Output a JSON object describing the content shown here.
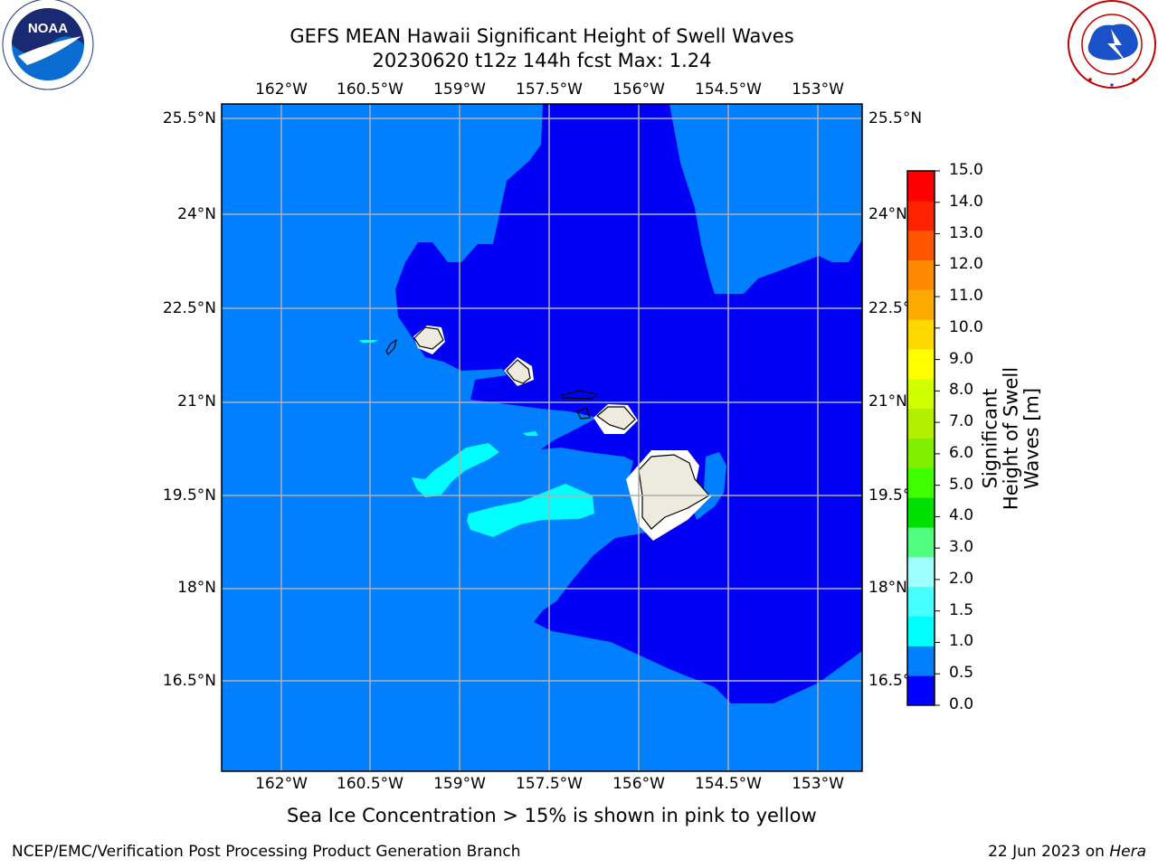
{
  "title": {
    "line1": "GEFS MEAN Hawaii Significant Height of Swell Waves",
    "line2": "20230620 t12z 144h fcst   Max: 1.24"
  },
  "logos": {
    "left": "NOAA",
    "left_ring_text": "NATIONAL OCEANIC AND ATMOSPHERIC ADMINISTRATION · U.S. DEPARTMENT OF COMMERCE",
    "right_ring_text": "NATIONAL WEATHER SERVICE"
  },
  "map": {
    "longitude_labels": [
      "162°W",
      "160.5°W",
      "159°W",
      "157.5°W",
      "156°W",
      "154.5°W",
      "153°W"
    ],
    "latitude_labels": [
      "25.5°N",
      "24°N",
      "22.5°N",
      "21°N",
      "19.5°N",
      "18°N",
      "16.5°N"
    ],
    "colors": {
      "ocean_low": "#0000f5",
      "ocean_mid": "#0080ff",
      "ocean_high": "#00ffff",
      "land": "#ecebdd",
      "grid": "#b0b0b0"
    }
  },
  "colorbar": {
    "title_line1": "Significant Height of Swell",
    "title_line2": "Waves [m]",
    "ticks": [
      "0.0",
      "0.5",
      "1.0",
      "1.5",
      "2.0",
      "3.0",
      "4.0",
      "5.0",
      "6.0",
      "7.0",
      "8.0",
      "9.0",
      "10.0",
      "11.0",
      "12.0",
      "13.0",
      "14.0",
      "15.0"
    ],
    "colors": [
      "#0000ff",
      "#0080ff",
      "#00ffff",
      "#48ffff",
      "#a0ffff",
      "#50ff80",
      "#00e000",
      "#40ff00",
      "#80f000",
      "#b0f000",
      "#d0ff00",
      "#ffff00",
      "#ffd800",
      "#ffaa00",
      "#ff8800",
      "#ff5500",
      "#ff2200",
      "#ff0000"
    ]
  },
  "sea_ice_note": "Sea Ice Concentration > 15% is shown in pink to yellow",
  "footer": {
    "left": "NCEP/EMC/Verification Post Processing Product Generation Branch",
    "right_prefix": "22 Jun 2023 on ",
    "right_machine": "Hera"
  }
}
